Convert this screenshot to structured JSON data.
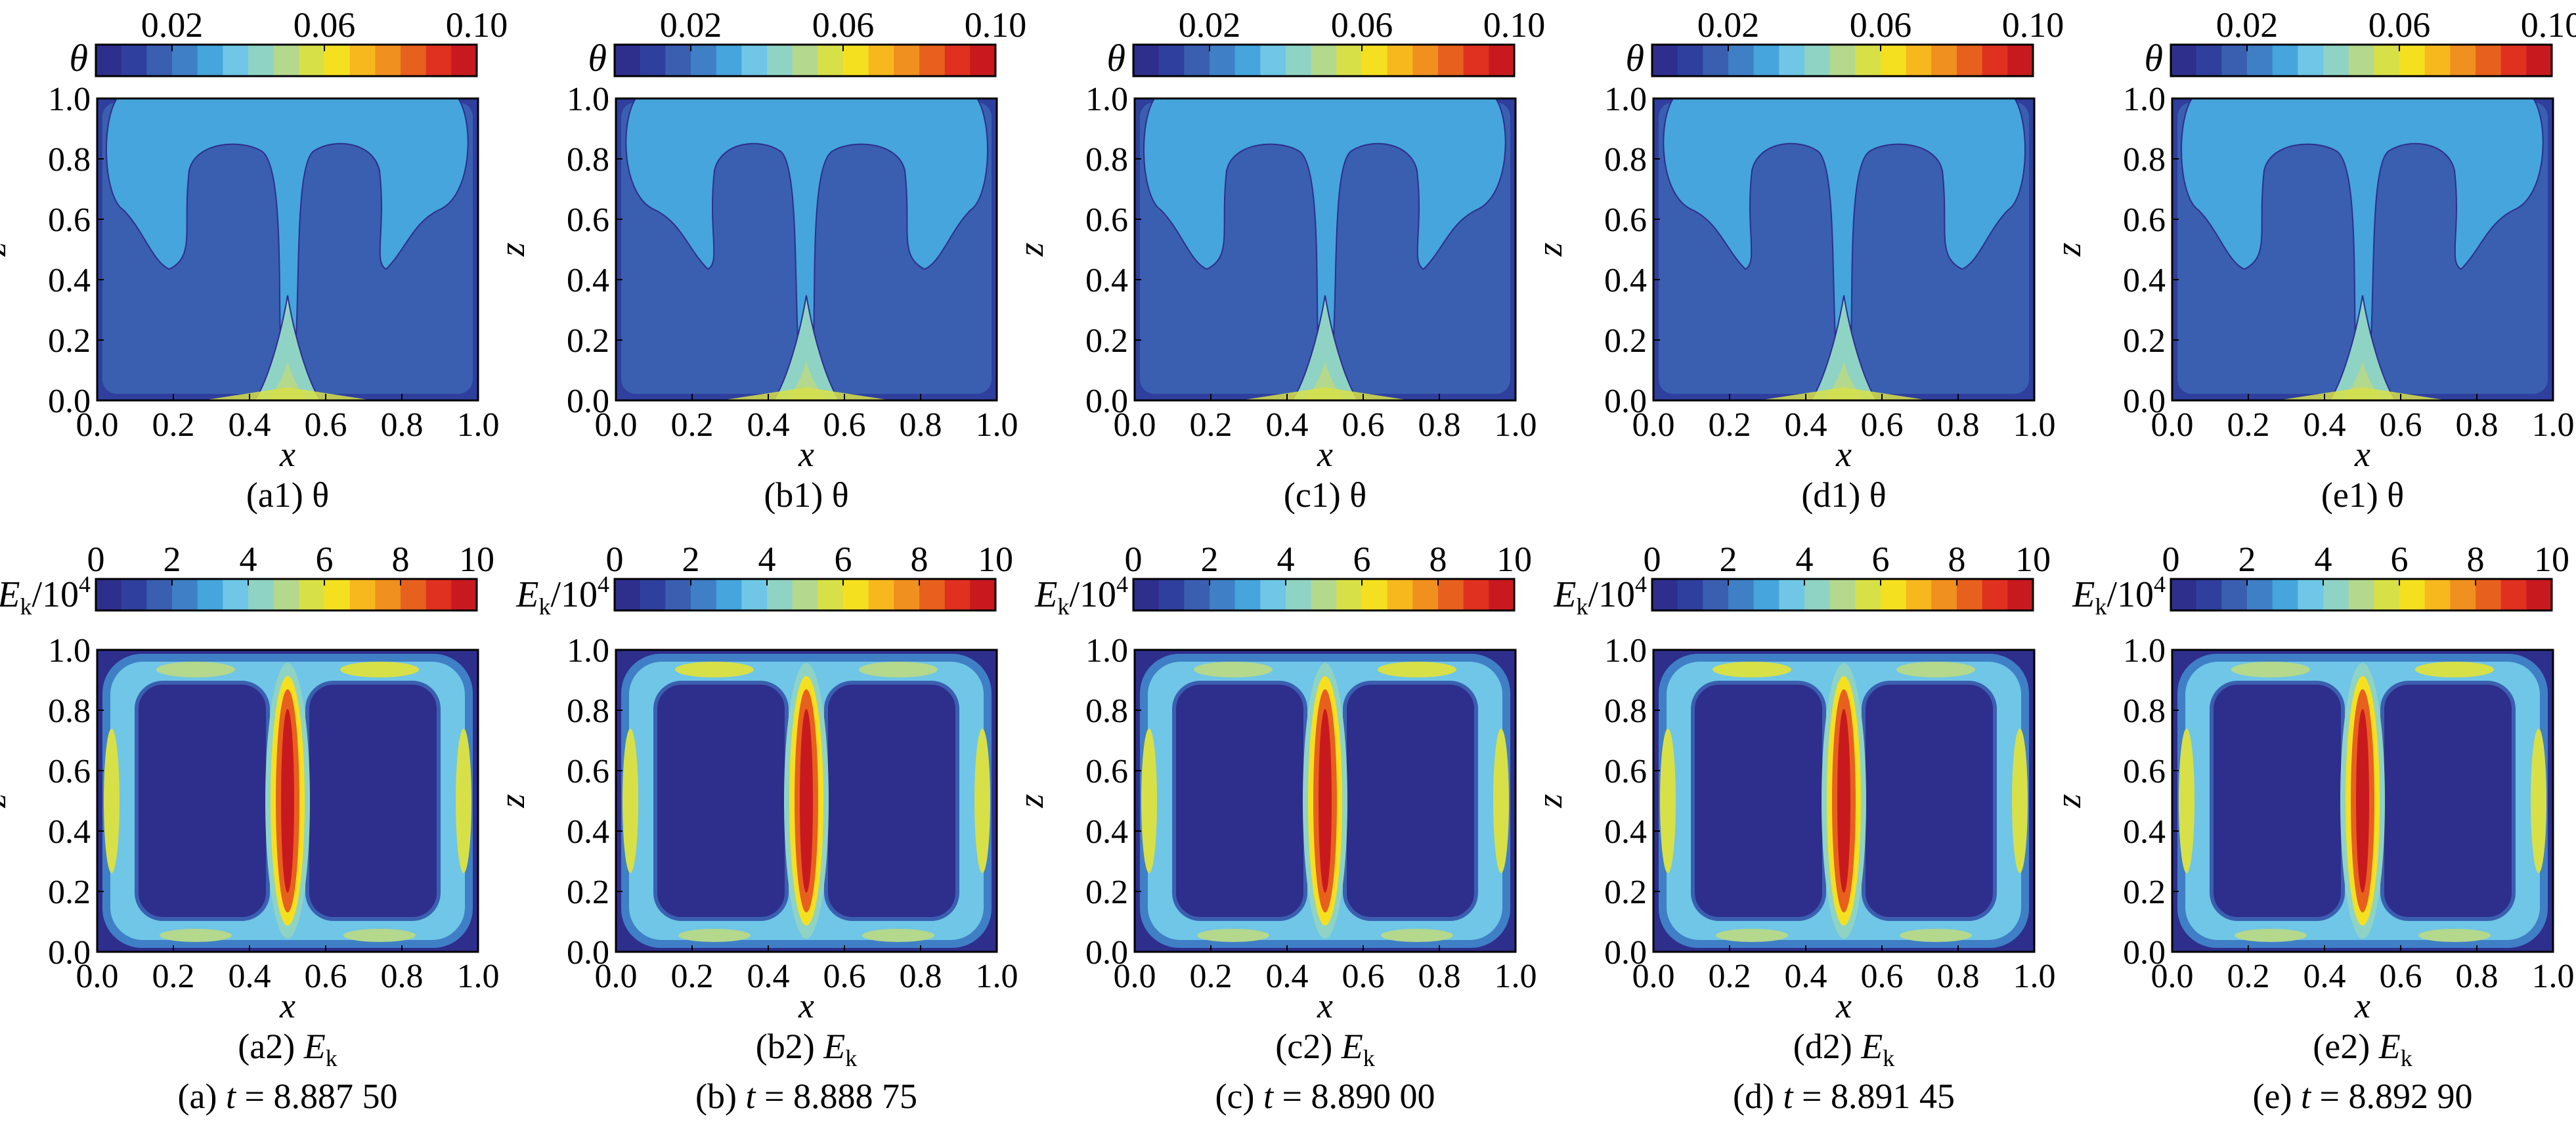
{
  "chart_data": {
    "type": "heatmap",
    "layout": "2 rows x 5 columns of contour plots",
    "colormap": [
      "#2e2e8c",
      "#2f3f9e",
      "#3a5fb0",
      "#3f7fc6",
      "#45a5dc",
      "#6fc6e6",
      "#8fd3c4",
      "#b4d88c",
      "#d8e048",
      "#f5e020",
      "#f7b81e",
      "#f0901e",
      "#e8601e",
      "#e03020",
      "#c81a1e"
    ],
    "colorbars": {
      "theta": {
        "label": "θ",
        "ticks": [
          "0.02",
          "0.06",
          "0.10"
        ],
        "range": [
          0,
          0.1
        ]
      },
      "ek": {
        "label_main": "E",
        "label_sub": "k",
        "label_tail": "/10",
        "label_sup": "4",
        "ticks": [
          "0",
          "2",
          "4",
          "6",
          "8",
          "10"
        ],
        "range": [
          0,
          10
        ]
      }
    },
    "axes": {
      "xlabel": "x",
      "ylabel": "z",
      "xlim": [
        0,
        1
      ],
      "ylim": [
        0,
        1
      ],
      "xticks": [
        "0.0",
        "0.2",
        "0.4",
        "0.6",
        "0.8",
        "1.0"
      ],
      "yticks": [
        "0.0",
        "0.2",
        "0.4",
        "0.6",
        "0.8",
        "1.0"
      ]
    },
    "columns": [
      {
        "id": "a",
        "theta_caption": "(a1) θ",
        "ek_prefix": "(a2)",
        "time_prefix": "(a)",
        "t": "8.887 50"
      },
      {
        "id": "b",
        "theta_caption": "(b1) θ",
        "ek_prefix": "(b2)",
        "time_prefix": "(b)",
        "t": "8.888 75"
      },
      {
        "id": "c",
        "theta_caption": "(c1) θ",
        "ek_prefix": "(c2)",
        "time_prefix": "(c)",
        "t": "8.890 00"
      },
      {
        "id": "d",
        "theta_caption": "(d1) θ",
        "ek_prefix": "(d2)",
        "time_prefix": "(d)",
        "t": "8.891 45"
      },
      {
        "id": "e",
        "theta_caption": "(e1) θ",
        "ek_prefix": "(e2)",
        "time_prefix": "(e)",
        "t": "8.892 90"
      }
    ],
    "ek_caption": {
      "main": "E",
      "sub": "k"
    },
    "time_label": {
      "var": "t",
      "eq": "="
    }
  }
}
